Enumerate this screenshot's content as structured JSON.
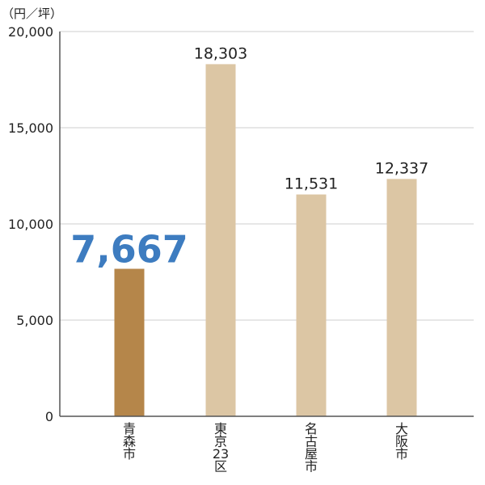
{
  "chart_data": {
    "type": "bar",
    "unit_label": "（円／坪）",
    "categories": [
      "青森市",
      "東京23区",
      "名古屋市",
      "大阪市"
    ],
    "category_lines": [
      [
        "青",
        "森",
        "市"
      ],
      [
        "東",
        "京",
        "23",
        "区"
      ],
      [
        "名",
        "古",
        "屋",
        "市"
      ],
      [
        "大",
        "阪",
        "市"
      ]
    ],
    "values": [
      7667,
      18303,
      11531,
      12337
    ],
    "value_labels": [
      "7,667",
      "18,303",
      "11,531",
      "12,337"
    ],
    "highlight_index": 0,
    "ylim": [
      0,
      20000
    ],
    "yticks": [
      0,
      5000,
      10000,
      15000,
      20000
    ],
    "ytick_labels": [
      "0",
      "5,000",
      "10,000",
      "15,000",
      "20,000"
    ],
    "grid": true,
    "colors": {
      "highlight_bar": "#b5864a",
      "bar": "#dcc6a4",
      "highlight_label": "#3d7cc0",
      "grid": "#cfcfcf",
      "axis": "#555555"
    }
  }
}
